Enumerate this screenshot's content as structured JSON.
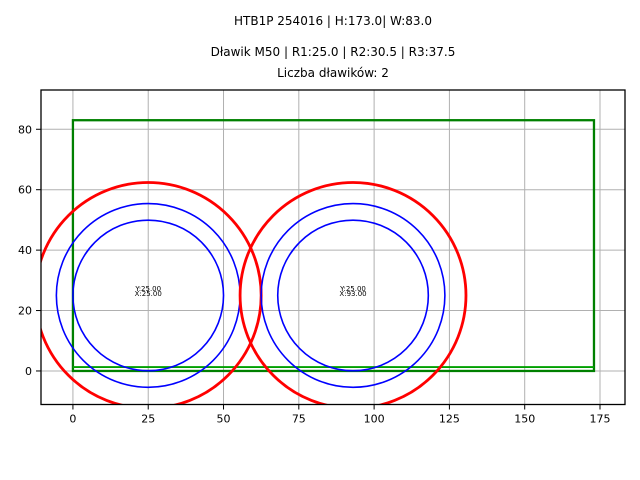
{
  "figure": {
    "suptitle_line1": "HTB1P 254016 | H:173.0| W:83.0",
    "suptitle_line2": "Dławik M50 | R1:25.0 | R2:30.5 | R3:37.5",
    "axes_title": "Liczba dławików: 2"
  },
  "chart_data": {
    "type": "line",
    "title": "HTB1P 254016 | H:173.0| W:83.0",
    "subtitle": "Dławik M50 | R1:25.0 | R2:30.5 | R3:37.5",
    "axes_title": "Liczba dławików: 2",
    "xlabel": "",
    "ylabel": "",
    "grid": true,
    "legend": "none",
    "xlim": [
      -10.6,
      183.3
    ],
    "ylim": [
      -11.1,
      93.0
    ],
    "xticks": [
      0,
      25,
      50,
      75,
      100,
      125,
      150,
      175
    ],
    "yticks": [
      0,
      20,
      40,
      60,
      80
    ],
    "plate": {
      "x": 0,
      "y": 0,
      "width": 173,
      "height": 83,
      "inner_line_y": 1.3,
      "inner_line_x0": 0,
      "inner_line_x1": 173
    },
    "gland_count": 2,
    "radii": [
      {
        "name": "R1",
        "value": 25.0,
        "color": "#0000ff",
        "lw": 1.6
      },
      {
        "name": "R2",
        "value": 30.5,
        "color": "#0000ff",
        "lw": 1.6
      },
      {
        "name": "R3",
        "value": 37.5,
        "color": "#ff0000",
        "lw": 2.8
      }
    ],
    "glands": [
      {
        "cx": 25.0,
        "cy": 25.0,
        "labels": [
          "Y:25.00",
          "X:25.00"
        ]
      },
      {
        "cx": 93.0,
        "cy": 25.0,
        "labels": [
          "Y:25.00",
          "X:93.00"
        ]
      }
    ],
    "colors": {
      "plate": "#008000",
      "inner_line": "#00a000",
      "grid": "#b0b0b0",
      "spine": "#000000",
      "tick_label": "#000000",
      "gland_label": "#000000",
      "background": "#ffffff"
    }
  }
}
